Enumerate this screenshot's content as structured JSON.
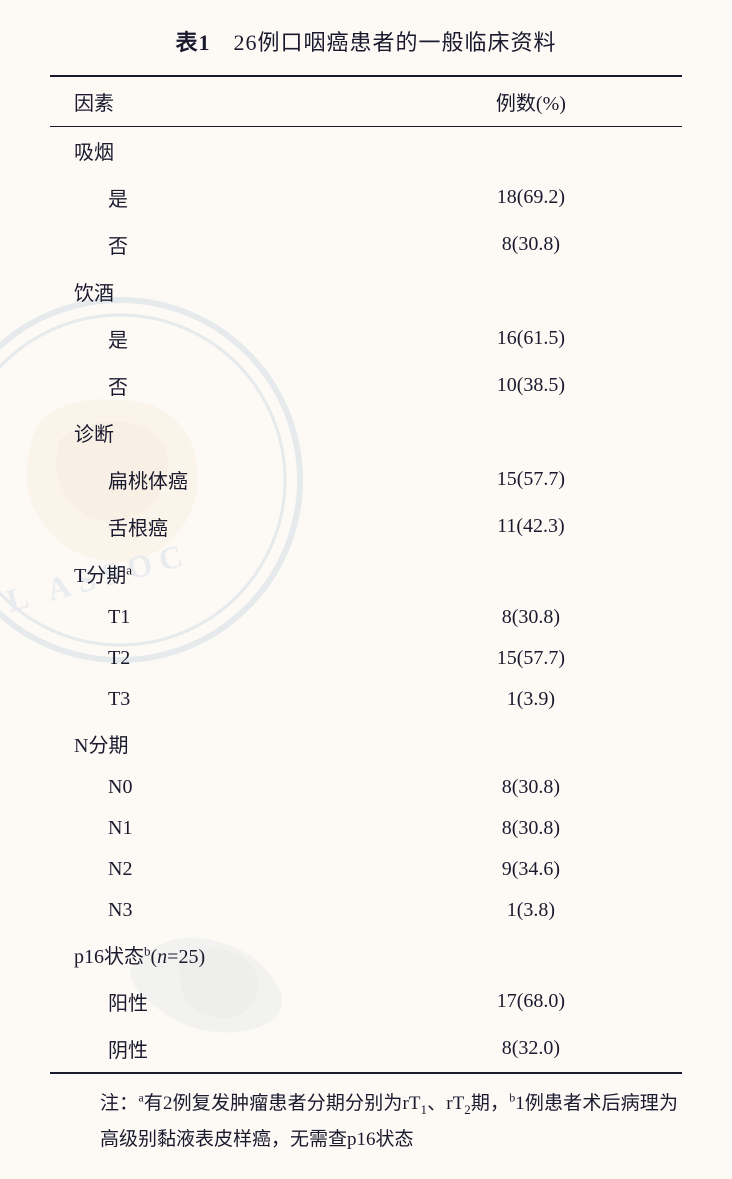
{
  "title_prefix": "表1",
  "title_text": "26例口咽癌患者的一般临床资料",
  "header": {
    "factor": "因素",
    "count": "例数(%)"
  },
  "sections": [
    {
      "category": "吸烟",
      "category_sup": "",
      "rows": [
        {
          "label": "是",
          "value": "18(69.2)"
        },
        {
          "label": "否",
          "value": "8(30.8)"
        }
      ]
    },
    {
      "category": "饮酒",
      "category_sup": "",
      "rows": [
        {
          "label": "是",
          "value": "16(61.5)"
        },
        {
          "label": "否",
          "value": "10(38.5)"
        }
      ]
    },
    {
      "category": "诊断",
      "category_sup": "",
      "rows": [
        {
          "label": "扁桃体癌",
          "value": "15(57.7)"
        },
        {
          "label": "舌根癌",
          "value": "11(42.3)"
        }
      ]
    },
    {
      "category": "T分期",
      "category_sup": "a",
      "rows": [
        {
          "label": "T1",
          "value": "8(30.8)"
        },
        {
          "label": "T2",
          "value": "15(57.7)"
        },
        {
          "label": "T3",
          "value": "1(3.9)"
        }
      ]
    },
    {
      "category": "N分期",
      "category_sup": "",
      "rows": [
        {
          "label": "N0",
          "value": "8(30.8)"
        },
        {
          "label": "N1",
          "value": "8(30.8)"
        },
        {
          "label": "N2",
          "value": "9(34.6)"
        },
        {
          "label": "N3",
          "value": "1(3.8)"
        }
      ]
    },
    {
      "category": "p16状态",
      "category_sup": "b",
      "category_suffix_html": "(<span class=\"ital\">n</span>=25)",
      "rows": [
        {
          "label": "阳性",
          "value": "17(68.0)"
        },
        {
          "label": "阴性",
          "value": "8(32.0)"
        }
      ]
    }
  ],
  "note_html": "注：<span class=\"sup\">a</span>有2例复发肿瘤患者分期分别为rT<span class=\"sub\">1</span>、rT<span class=\"sub\">2</span>期，<span class=\"sup\">b</span>1例患者术后病理为高级别黏液表皮样癌，无需查p16状态",
  "colors": {
    "background": "#fdfaf6",
    "text": "#1a1a2e",
    "border": "#1a1a2e",
    "watermark_map": "#e8b87a",
    "watermark_ring": "#4a7ba8",
    "watermark_text": "#5a8bb8"
  },
  "typography": {
    "title_fontsize": 22,
    "body_fontsize": 20,
    "note_fontsize": 19,
    "font_family": "SimSun"
  }
}
